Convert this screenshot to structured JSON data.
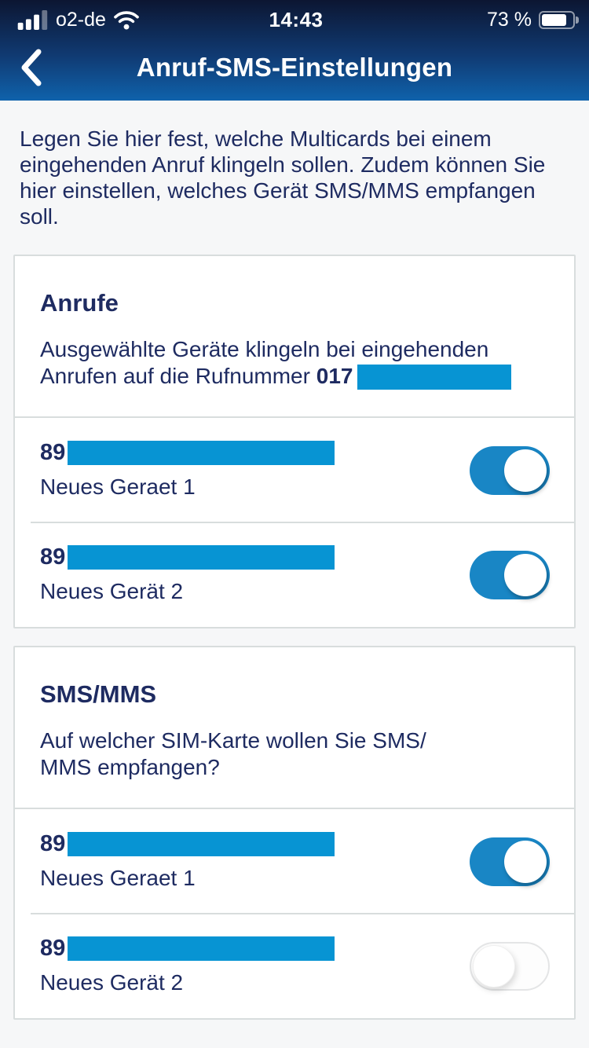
{
  "status_bar": {
    "carrier": "o2-de",
    "time": "14:43",
    "battery_label": "73 %",
    "battery_level_percent": 73,
    "signal_bars_filled": 3,
    "signal_bars_total": 4
  },
  "nav": {
    "title": "Anruf-SMS-Einstellungen"
  },
  "intro": {
    "lines": [
      "Legen Sie hier fest, welche Multicards bei einem",
      "eingehenden Anruf klingeln sollen. Zudem können Sie",
      "hier einstellen, welches Gerät SMS/MMS empfangen",
      "soll."
    ]
  },
  "calls_section": {
    "title": "Anrufe",
    "desc_line1": "Ausgewählte Geräte klingeln bei eingehenden",
    "desc_line2_prefix": "Anrufen auf die Rufnummer ",
    "desc_line2_bold": "017",
    "rows": [
      {
        "sim_prefix": "89",
        "device": "Neues Geraet 1",
        "enabled": true
      },
      {
        "sim_prefix": "89",
        "device": "Neues Gerät 2",
        "enabled": true
      }
    ]
  },
  "sms_section": {
    "title": "SMS/MMS",
    "desc_lines": [
      "Auf welcher SIM-Karte wollen Sie SMS/",
      "MMS empfangen?"
    ],
    "rows": [
      {
        "sim_prefix": "89",
        "device": "Neues Geraet 1",
        "enabled": true
      },
      {
        "sim_prefix": "89",
        "device": "Neues Gerät 2",
        "enabled": false
      }
    ]
  },
  "colors": {
    "accent_blue": "#0794d3",
    "toggle_on_blue": "#1986c5",
    "text_navy": "#1e2b61",
    "header_gradient_top": "#0c1632",
    "header_gradient_bottom": "#0f62ab",
    "page_background": "#f6f7f8",
    "card_border": "#d8dddd"
  }
}
